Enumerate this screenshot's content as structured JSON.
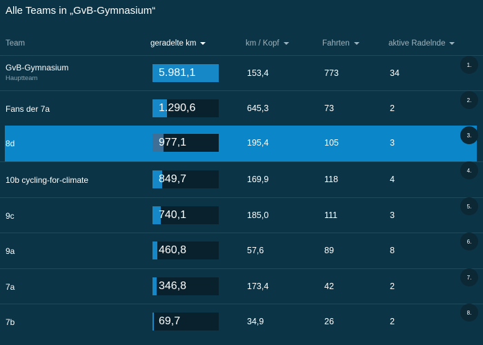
{
  "title": "Alle Teams in „GvB-Gymnasium“",
  "columns": [
    {
      "label": "Team",
      "sortable": false,
      "active": false
    },
    {
      "label": "geradelte km",
      "sortable": true,
      "active": true
    },
    {
      "label": "km / Kopf",
      "sortable": true,
      "active": false
    },
    {
      "label": "Fahrten",
      "sortable": true,
      "active": false
    },
    {
      "label": "aktive Radelnde",
      "sortable": true,
      "active": false
    }
  ],
  "colors": {
    "background": "#0b3446",
    "highlight_row": "#0a86c9",
    "bar_fill": "#1688c8",
    "bar_track": "#08212d",
    "rank_badge": "#0c2835"
  },
  "rows": [
    {
      "rank": "1.",
      "team": "GvB-Gymnasium",
      "sub": "Hauptteam",
      "km": "5.981,1",
      "km_fraction": 1.0,
      "km_per_head": "153,4",
      "trips": "773",
      "active": "34",
      "highlighted": false
    },
    {
      "rank": "2.",
      "team": "Fans der 7a",
      "sub": "",
      "km": "1.290,6",
      "km_fraction": 0.216,
      "km_per_head": "645,3",
      "trips": "73",
      "active": "2",
      "highlighted": false
    },
    {
      "rank": "3.",
      "team": "8d",
      "sub": "",
      "km": "977,1",
      "km_fraction": 0.163,
      "km_per_head": "195,4",
      "trips": "105",
      "active": "3",
      "highlighted": true
    },
    {
      "rank": "4.",
      "team": "10b cycling-for-climate",
      "sub": "",
      "km": "849,7",
      "km_fraction": 0.142,
      "km_per_head": "169,9",
      "trips": "118",
      "active": "4",
      "highlighted": false
    },
    {
      "rank": "5.",
      "team": "9c",
      "sub": "",
      "km": "740,1",
      "km_fraction": 0.124,
      "km_per_head": "185,0",
      "trips": "111",
      "active": "3",
      "highlighted": false
    },
    {
      "rank": "6.",
      "team": "9a",
      "sub": "",
      "km": "460,8",
      "km_fraction": 0.077,
      "km_per_head": "57,6",
      "trips": "89",
      "active": "8",
      "highlighted": false
    },
    {
      "rank": "7.",
      "team": "7a",
      "sub": "",
      "km": "346,8",
      "km_fraction": 0.058,
      "km_per_head": "173,4",
      "trips": "42",
      "active": "2",
      "highlighted": false
    },
    {
      "rank": "8.",
      "team": "7b",
      "sub": "",
      "km": "69,7",
      "km_fraction": 0.012,
      "km_per_head": "34,9",
      "trips": "26",
      "active": "2",
      "highlighted": false
    }
  ]
}
